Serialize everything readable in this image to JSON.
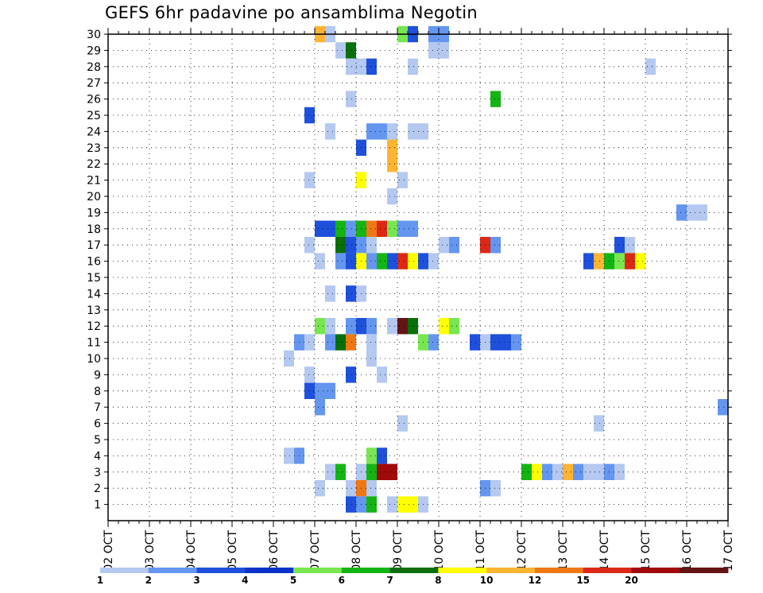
{
  "chart_data": {
    "type": "heatmap",
    "title": "GEFS 6hr padavine po ansamblima Negotin",
    "x_tick_labels": [
      "02 OCT",
      "03 OCT",
      "04 OCT",
      "05 OCT",
      "06 OCT",
      "07 OCT",
      "08 OCT",
      "09 OCT",
      "10 OCT",
      "11 OCT",
      "12 OCT",
      "13 OCT",
      "14 OCT",
      "15 OCT",
      "16 OCT",
      "17 OCT"
    ],
    "y_tick_labels": [
      "1",
      "2",
      "3",
      "4",
      "5",
      "6",
      "7",
      "8",
      "9",
      "10",
      "11",
      "12",
      "13",
      "14",
      "15",
      "16",
      "17",
      "18",
      "19",
      "20",
      "21",
      "22",
      "23",
      "24",
      "25",
      "26",
      "27",
      "28",
      "29",
      "30"
    ],
    "xlim": [
      "02 OCT 00z",
      "17 OCT 00z"
    ],
    "ylim": [
      0,
      30
    ],
    "grid": true,
    "colorbar": {
      "colors": [
        "#b4c8f0",
        "#6496f0",
        "#1e50dc",
        "#0a32c8",
        "#78e650",
        "#14b414",
        "#0a6e0a",
        "#ffff00",
        "#ffb432",
        "#f07814",
        "#dc2814",
        "#a00a0a",
        "#641414"
      ],
      "labels": [
        "1",
        "2",
        "3",
        "4",
        "5",
        "6",
        "7",
        "8",
        "10",
        "12",
        "15",
        "20"
      ]
    },
    "cells": [
      [
        7.125,
        30,
        "#ffb432"
      ],
      [
        7.375,
        30,
        "#b4c8f0"
      ],
      [
        9.125,
        30,
        "#78e650"
      ],
      [
        9.375,
        30,
        "#1e50dc"
      ],
      [
        9.875,
        30,
        "#6496f0"
      ],
      [
        10.125,
        30,
        "#6496f0"
      ],
      [
        7.625,
        29,
        "#b4c8f0"
      ],
      [
        7.875,
        29,
        "#0a6e0a"
      ],
      [
        9.875,
        29,
        "#b4c8f0"
      ],
      [
        10.125,
        29,
        "#b4c8f0"
      ],
      [
        7.875,
        28,
        "#b4c8f0"
      ],
      [
        8.125,
        28,
        "#b4c8f0"
      ],
      [
        8.375,
        28,
        "#1e50dc"
      ],
      [
        9.375,
        28,
        "#b4c8f0"
      ],
      [
        15.125,
        28,
        "#b4c8f0"
      ],
      [
        7.875,
        26,
        "#b4c8f0"
      ],
      [
        11.375,
        26,
        "#14b414"
      ],
      [
        6.875,
        25,
        "#1e50dc"
      ],
      [
        7.375,
        24,
        "#b4c8f0"
      ],
      [
        8.375,
        24,
        "#6496f0"
      ],
      [
        8.625,
        24,
        "#6496f0"
      ],
      [
        8.875,
        24,
        "#b4c8f0"
      ],
      [
        9.375,
        24,
        "#b4c8f0"
      ],
      [
        9.625,
        24,
        "#b4c8f0"
      ],
      [
        8.125,
        23,
        "#1e50dc"
      ],
      [
        8.875,
        23,
        "#ffb432"
      ],
      [
        8.875,
        22,
        "#ffb432"
      ],
      [
        6.875,
        21,
        "#b4c8f0"
      ],
      [
        8.125,
        21,
        "#ffff00"
      ],
      [
        9.125,
        21,
        "#b4c8f0"
      ],
      [
        8.875,
        20,
        "#b4c8f0"
      ],
      [
        15.875,
        19,
        "#6496f0"
      ],
      [
        16.125,
        19,
        "#b4c8f0"
      ],
      [
        16.375,
        19,
        "#b4c8f0"
      ],
      [
        7.125,
        18,
        "#1e50dc"
      ],
      [
        7.375,
        18,
        "#1e50dc"
      ],
      [
        7.625,
        18,
        "#14b414"
      ],
      [
        7.875,
        18,
        "#6496f0"
      ],
      [
        8.125,
        18,
        "#14b414"
      ],
      [
        8.375,
        18,
        "#f07814"
      ],
      [
        8.625,
        18,
        "#dc2814"
      ],
      [
        8.875,
        18,
        "#78e650"
      ],
      [
        9.125,
        18,
        "#6496f0"
      ],
      [
        9.375,
        18,
        "#6496f0"
      ],
      [
        6.875,
        17,
        "#b4c8f0"
      ],
      [
        7.625,
        17,
        "#0a6e0a"
      ],
      [
        7.875,
        17,
        "#1e50dc"
      ],
      [
        8.125,
        17,
        "#6496f0"
      ],
      [
        8.375,
        17,
        "#b4c8f0"
      ],
      [
        10.125,
        17,
        "#b4c8f0"
      ],
      [
        10.375,
        17,
        "#6496f0"
      ],
      [
        11.125,
        17,
        "#dc2814"
      ],
      [
        11.375,
        17,
        "#6496f0"
      ],
      [
        14.375,
        17,
        "#1e50dc"
      ],
      [
        14.625,
        17,
        "#b4c8f0"
      ],
      [
        7.125,
        16,
        "#b4c8f0"
      ],
      [
        7.625,
        16,
        "#6496f0"
      ],
      [
        7.875,
        16,
        "#1e50dc"
      ],
      [
        8.125,
        16,
        "#ffff00"
      ],
      [
        8.375,
        16,
        "#6496f0"
      ],
      [
        8.625,
        16,
        "#14b414"
      ],
      [
        8.875,
        16,
        "#1e50dc"
      ],
      [
        9.125,
        16,
        "#dc2814"
      ],
      [
        9.375,
        16,
        "#ffff00"
      ],
      [
        9.625,
        16,
        "#1e50dc"
      ],
      [
        9.875,
        16,
        "#b4c8f0"
      ],
      [
        13.625,
        16,
        "#1e50dc"
      ],
      [
        13.875,
        16,
        "#ffb432"
      ],
      [
        14.125,
        16,
        "#14b414"
      ],
      [
        14.375,
        16,
        "#78e650"
      ],
      [
        14.625,
        16,
        "#dc2814"
      ],
      [
        14.875,
        16,
        "#ffff00"
      ],
      [
        7.375,
        14,
        "#b4c8f0"
      ],
      [
        7.875,
        14,
        "#1e50dc"
      ],
      [
        8.125,
        14,
        "#b4c8f0"
      ],
      [
        7.125,
        12,
        "#78e650"
      ],
      [
        7.375,
        12,
        "#b4c8f0"
      ],
      [
        7.875,
        12,
        "#6496f0"
      ],
      [
        8.125,
        12,
        "#1e50dc"
      ],
      [
        8.375,
        12,
        "#6496f0"
      ],
      [
        8.875,
        12,
        "#b4c8f0"
      ],
      [
        9.125,
        12,
        "#641414"
      ],
      [
        9.375,
        12,
        "#0a6e0a"
      ],
      [
        10.125,
        12,
        "#ffff00"
      ],
      [
        10.375,
        12,
        "#78e650"
      ],
      [
        6.625,
        11,
        "#6496f0"
      ],
      [
        6.875,
        11,
        "#b4c8f0"
      ],
      [
        7.375,
        11,
        "#6496f0"
      ],
      [
        7.625,
        11,
        "#0a6e0a"
      ],
      [
        7.875,
        11,
        "#f07814"
      ],
      [
        8.375,
        11,
        "#b4c8f0"
      ],
      [
        9.625,
        11,
        "#78e650"
      ],
      [
        9.875,
        11,
        "#6496f0"
      ],
      [
        10.875,
        11,
        "#1e50dc"
      ],
      [
        11.125,
        11,
        "#b4c8f0"
      ],
      [
        11.375,
        11,
        "#1e50dc"
      ],
      [
        11.625,
        11,
        "#1e50dc"
      ],
      [
        11.875,
        11,
        "#6496f0"
      ],
      [
        6.375,
        10,
        "#b4c8f0"
      ],
      [
        8.375,
        10,
        "#b4c8f0"
      ],
      [
        6.875,
        9,
        "#b4c8f0"
      ],
      [
        7.875,
        9,
        "#1e50dc"
      ],
      [
        8.625,
        9,
        "#b4c8f0"
      ],
      [
        6.875,
        8,
        "#1e50dc"
      ],
      [
        7.125,
        8,
        "#6496f0"
      ],
      [
        7.375,
        8,
        "#6496f0"
      ],
      [
        7.125,
        7,
        "#6496f0"
      ],
      [
        16.875,
        7,
        "#6496f0"
      ],
      [
        9.125,
        6,
        "#b4c8f0"
      ],
      [
        13.875,
        6,
        "#b4c8f0"
      ],
      [
        6.375,
        4,
        "#b4c8f0"
      ],
      [
        6.625,
        4,
        "#6496f0"
      ],
      [
        8.375,
        4,
        "#78e650"
      ],
      [
        8.625,
        4,
        "#1e50dc"
      ],
      [
        7.375,
        3,
        "#b4c8f0"
      ],
      [
        7.625,
        3,
        "#14b414"
      ],
      [
        8.125,
        3,
        "#b4c8f0"
      ],
      [
        8.375,
        3,
        "#14b414"
      ],
      [
        8.625,
        3,
        "#a00a0a"
      ],
      [
        8.875,
        3,
        "#a00a0a"
      ],
      [
        12.125,
        3,
        "#14b414"
      ],
      [
        12.375,
        3,
        "#ffff00"
      ],
      [
        12.625,
        3,
        "#6496f0"
      ],
      [
        12.875,
        3,
        "#b4c8f0"
      ],
      [
        13.125,
        3,
        "#ffb432"
      ],
      [
        13.375,
        3,
        "#6496f0"
      ],
      [
        13.625,
        3,
        "#b4c8f0"
      ],
      [
        13.875,
        3,
        "#b4c8f0"
      ],
      [
        14.125,
        3,
        "#6496f0"
      ],
      [
        14.375,
        3,
        "#b4c8f0"
      ],
      [
        7.125,
        2,
        "#b4c8f0"
      ],
      [
        7.875,
        2,
        "#b4c8f0"
      ],
      [
        8.125,
        2,
        "#f07814"
      ],
      [
        8.375,
        2,
        "#b4c8f0"
      ],
      [
        11.125,
        2,
        "#6496f0"
      ],
      [
        11.375,
        2,
        "#b4c8f0"
      ],
      [
        7.875,
        1,
        "#1e50dc"
      ],
      [
        8.125,
        1,
        "#6496f0"
      ],
      [
        8.375,
        1,
        "#14b414"
      ],
      [
        8.875,
        1,
        "#b4c8f0"
      ],
      [
        9.125,
        1,
        "#ffff00"
      ],
      [
        9.375,
        1,
        "#ffff00"
      ],
      [
        9.625,
        1,
        "#b4c8f0"
      ]
    ]
  }
}
